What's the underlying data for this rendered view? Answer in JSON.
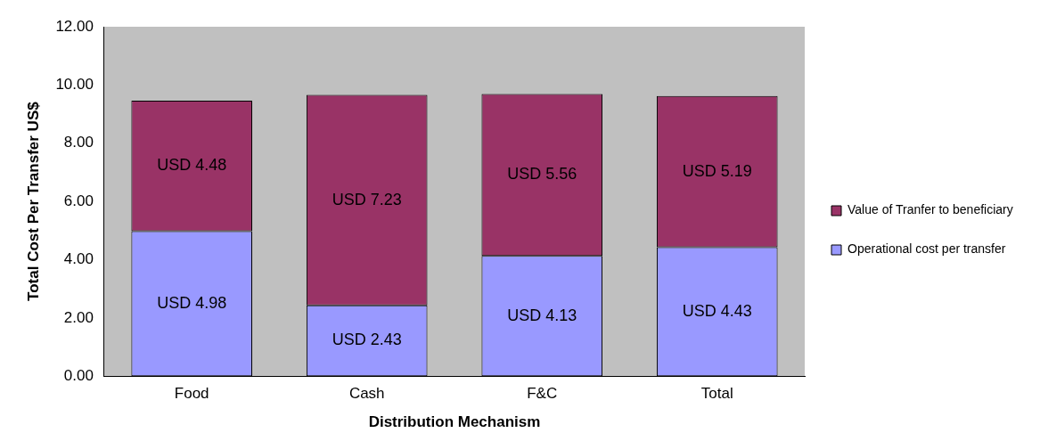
{
  "chart_data": {
    "type": "bar",
    "stacked": true,
    "xlabel": "Distribution Mechanism",
    "ylabel": "Total Cost Per Transfer US$",
    "categories": [
      "Food",
      "Cash",
      "F&C",
      "Total"
    ],
    "series": [
      {
        "name": "Operational cost per transfer",
        "color": "#9999ff",
        "values": [
          4.98,
          2.43,
          4.13,
          4.43
        ],
        "value_labels": [
          "USD 4.98",
          "USD 2.43",
          "USD 4.13",
          "USD 4.43"
        ]
      },
      {
        "name": "Value of Tranfer to beneficiary",
        "color": "#993366",
        "values": [
          4.48,
          7.23,
          5.56,
          5.19
        ],
        "value_labels": [
          "USD 4.48",
          "USD 7.23",
          "USD 5.56",
          "USD 5.19"
        ]
      }
    ],
    "ylim": [
      0,
      12
    ],
    "yticks": [
      {
        "value": 0,
        "label": "0.00"
      },
      {
        "value": 2,
        "label": "2.00"
      },
      {
        "value": 4,
        "label": "4.00"
      },
      {
        "value": 6,
        "label": "6.00"
      },
      {
        "value": 8,
        "label": "8.00"
      },
      {
        "value": 10,
        "label": "10.00"
      },
      {
        "value": 12,
        "label": "12.00"
      }
    ],
    "grid": false,
    "legend": "right"
  }
}
